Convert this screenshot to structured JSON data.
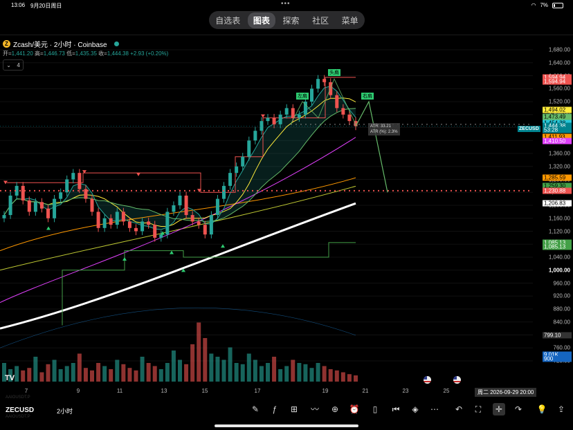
{
  "status_bar": {
    "time": "13:06",
    "date": "9月20日周日",
    "battery": "7%"
  },
  "top_tabs": [
    {
      "label": "自选表",
      "active": false
    },
    {
      "label": "图表",
      "active": true
    },
    {
      "label": "探索",
      "active": false
    },
    {
      "label": "社区",
      "active": false
    },
    {
      "label": "菜单",
      "active": false
    }
  ],
  "header": {
    "symbol_title": "Zcash/美元 · 2小时 · Coinbase",
    "ohlc": {
      "open_label": "开=",
      "open": "1,441.20",
      "high_label": "高=",
      "high": "1,446.73",
      "low_label": "低=",
      "low": "1,435.35",
      "close_label": "收=",
      "close": "1,444.38",
      "change": "+2.93 (+0.20%)"
    },
    "indicator_count": "4"
  },
  "y_axis": {
    "ticks": [
      "1,680.00",
      "1,640.00",
      "1,600.00",
      "1,560.00",
      "1,520.00",
      "1,480.00",
      "1,440.00",
      "1,400.00",
      "1,360.00",
      "1,320.00",
      "1,280.00",
      "1,240.00",
      "1,200.00",
      "1,160.00",
      "1,120.00",
      "1,080.00",
      "1,040.00",
      "1,000.00",
      "960.00",
      "920.00",
      "880.00",
      "840.00",
      "800.00",
      "760.00",
      "720.00"
    ],
    "price_tags": [
      {
        "label": "1,594.94",
        "color": "#ef5350",
        "text": "#fff",
        "value": 1594.94
      },
      {
        "label": "1,594.94",
        "color": "#ef5350",
        "text": "#fff",
        "value": 1582
      },
      {
        "label": "1,494.02",
        "color": "#ffeb3b",
        "text": "#000",
        "value": 1494.02
      },
      {
        "label": "1,473.49",
        "color": "#66bb6a",
        "text": "#000",
        "value": 1473.49
      },
      {
        "label": "1,454.38",
        "color": "#26c6da",
        "text": "#000",
        "value": 1454.38
      },
      {
        "label": "1,444.38",
        "color": "#00838f",
        "text": "#fff",
        "value": 1444.38
      },
      {
        "label": "53:28",
        "color": "#00838f",
        "text": "#fff",
        "value": 1432
      },
      {
        "label": "1,411.93",
        "color": "#ff9800",
        "text": "#000",
        "value": 1411.93
      },
      {
        "label": "1,410.50",
        "color": "#e040fb",
        "text": "#fff",
        "value": 1398
      },
      {
        "label": "1,285.59",
        "color": "#ff9800",
        "text": "#000",
        "value": 1285.59
      },
      {
        "label": "1,259.30",
        "color": "#43a047",
        "text": "#000",
        "value": 1259.3
      },
      {
        "label": "1,230.88",
        "color": "#ef5350",
        "text": "#fff",
        "value": 1245
      },
      {
        "label": "1,206.83",
        "color": "#ffffff",
        "text": "#000",
        "value": 1206.83
      },
      {
        "label": "1,085.13",
        "color": "#43a047",
        "text": "#fff",
        "value": 1085.13
      },
      {
        "label": "1,085.13",
        "color": "#43a047",
        "text": "#fff",
        "value": 1072
      },
      {
        "label": "799.10",
        "color": "#333333",
        "text": "#fff",
        "value": 799.1
      },
      {
        "label": "9.01K",
        "color": "#1565c0",
        "text": "#fff",
        "value": 739
      },
      {
        "label": "900",
        "color": "#1565c0",
        "text": "#fff",
        "value": 727
      }
    ],
    "symbol_tag": "ZECUSD"
  },
  "x_axis": {
    "ticks": [
      "7",
      "9",
      "11",
      "13",
      "15",
      "17",
      "19",
      "21",
      "23",
      "25"
    ],
    "crosshair_date": "周二 2026-09-29  20:00"
  },
  "pattern_labels": {
    "head": "头肩",
    "left_shoulder": "左肩",
    "right_shoulder": "右肩"
  },
  "atr": {
    "line1": "ATR: 33.21",
    "line2": "ATR (%): 2.3%"
  },
  "watermarks": {
    "top": "AAIOUSDT.P",
    "bottom": "AAIOUSDT.P"
  },
  "bottom_bar": {
    "symbol": "ZECUSD",
    "timeframe": "2小时",
    "tools": [
      "pen-icon",
      "indicator-icon",
      "grid-icon",
      "chart-type-icon",
      "add-icon",
      "alert-icon",
      "candle-icon",
      "replay-icon",
      "layers-icon",
      "more-icon",
      "undo-icon",
      "fullscreen-icon",
      "crosshair-icon",
      "redo-icon",
      "bulb-icon",
      "share-icon"
    ]
  },
  "chart_data": {
    "type": "candlestick",
    "symbol": "ZECUSD",
    "interval": "2h",
    "ylim": [
      700,
      1700
    ],
    "current_price": 1444.38,
    "close_path": [
      1170,
      1230,
      1260,
      1215,
      1180,
      1210,
      1190,
      1160,
      1220,
      1240,
      1280,
      1300,
      1250,
      1220,
      1180,
      1130,
      1160,
      1140,
      1180,
      1150,
      1130,
      1120,
      1150,
      1140,
      1100,
      1110,
      1180,
      1200,
      1230,
      1170,
      1150,
      1140,
      1110,
      1170,
      1220,
      1260,
      1300,
      1320,
      1350,
      1400,
      1430,
      1460,
      1470,
      1450,
      1480,
      1500,
      1470,
      1480,
      1520,
      1560,
      1590,
      1580,
      1540,
      1500,
      1480,
      1460,
      1444
    ],
    "horizontal_levels": [
      {
        "name": "resistance",
        "value": 1245,
        "color": "#ef5350",
        "style": "dotted"
      },
      {
        "name": "neckline",
        "value": 1450,
        "color": "#888888",
        "style": "dotted"
      }
    ],
    "volume": [
      30,
      20,
      25,
      18,
      22,
      40,
      15,
      28,
      35,
      20,
      25,
      30,
      45,
      22,
      18,
      30,
      25,
      20,
      35,
      28,
      22,
      18,
      40,
      30,
      25,
      20,
      30,
      50,
      35,
      28,
      60,
      95,
      70,
      45,
      40,
      35,
      55,
      30,
      28,
      45,
      35,
      25,
      30,
      40,
      20,
      25,
      35,
      30,
      28,
      22,
      30,
      25,
      20,
      18,
      15,
      12,
      10
    ],
    "annotations": [
      "头肩",
      "左肩",
      "右肩"
    ]
  }
}
